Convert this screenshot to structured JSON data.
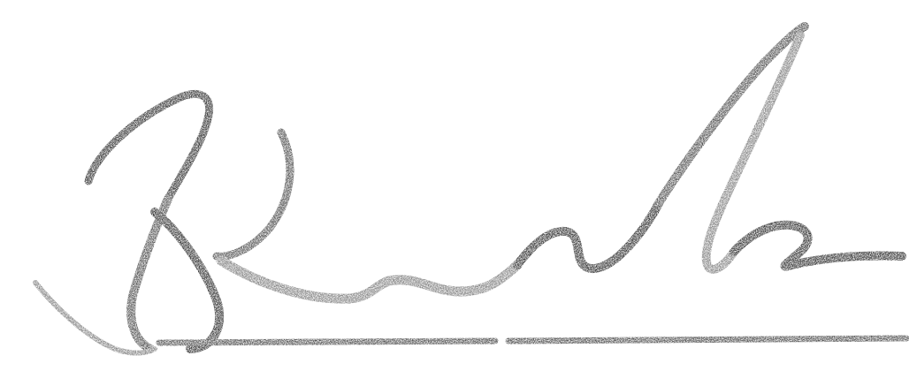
{
  "signature": {
    "description_visible_text": "",
    "colors": {
      "background": "#ffffff",
      "ink": "#5a5a5a",
      "ink_dark": "#3d3d3d",
      "ink_light": "#8a8a8a"
    }
  }
}
